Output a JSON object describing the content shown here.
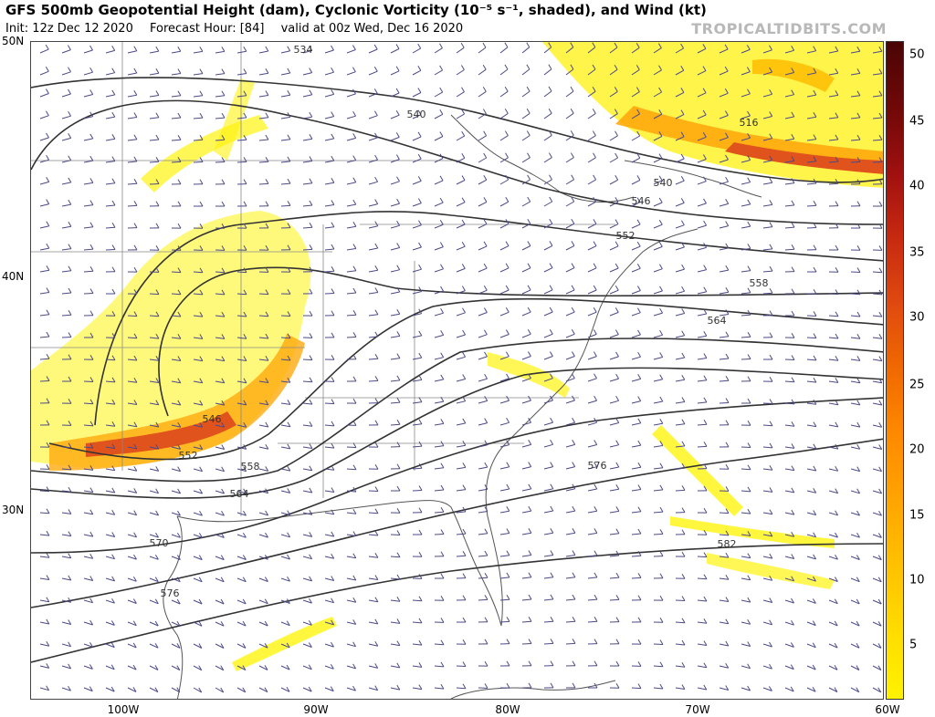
{
  "header": {
    "title": "GFS 500mb Geopotential Height (dam), Cyclonic Vorticity (10⁻⁵ s⁻¹, shaded), and Wind (kt)",
    "init": "Init: 12z Dec 12 2020",
    "forecast_hour": "Forecast Hour: [84]",
    "valid": "valid at 00z Wed, Dec 16 2020",
    "brand": "TROPICALTIDBITS.COM"
  },
  "axes": {
    "lat_labels": [
      "50N",
      "40N",
      "30N"
    ],
    "lon_labels": [
      "100W",
      "90W",
      "80W",
      "70W",
      "60W"
    ]
  },
  "contour_labels": [
    "534",
    "540",
    "546",
    "552",
    "558",
    "564",
    "570",
    "576",
    "582",
    "516",
    "546",
    "540",
    "552",
    "558",
    "564",
    "576"
  ],
  "colorbar": {
    "ticks": [
      "5",
      "10",
      "15",
      "20",
      "25",
      "30",
      "35",
      "40",
      "45",
      "50"
    ],
    "colors": [
      "#fff200",
      "#ffdd00",
      "#ffc200",
      "#ffa500",
      "#ff8a00",
      "#f06a00",
      "#e04a10",
      "#c82a10",
      "#a01010",
      "#700808",
      "#4a0505"
    ]
  },
  "colors": {
    "contour": "#333333",
    "barb": "#4a4a8a",
    "border": "#888888",
    "county": "#bbbbbb"
  }
}
